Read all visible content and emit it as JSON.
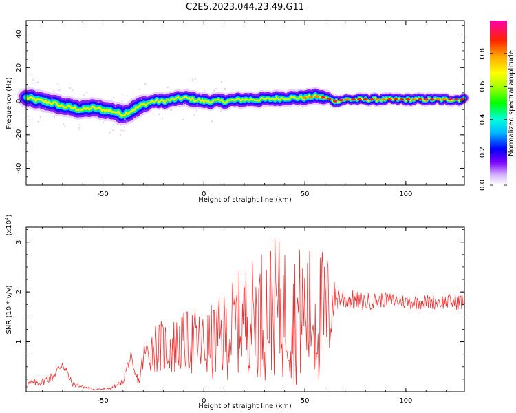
{
  "title": "C2E5.2023.044.23.49.G11",
  "chart_data": [
    {
      "type": "heatmap",
      "xlabel": "Height of straight line (km)",
      "ylabel": "Frequency (Hz)",
      "xlim": [
        -88,
        129
      ],
      "ylim": [
        -50,
        48
      ],
      "x_ticks": [
        -50,
        0,
        50,
        100
      ],
      "y_ticks": [
        -40,
        -20,
        0,
        20,
        40
      ],
      "grid": false,
      "ridge": {
        "x": [
          -88,
          -80,
          -75,
          -70,
          -65,
          -60,
          -55,
          -50,
          -45,
          -40,
          -35,
          -30,
          -25,
          -20,
          -15,
          -10,
          -5,
          0,
          5,
          10,
          20,
          30,
          40,
          50,
          55,
          60,
          65,
          70,
          80,
          90,
          100,
          110,
          120,
          129
        ],
        "frequency": [
          2,
          0,
          -1,
          -3,
          -4,
          -5,
          -4,
          -5,
          -6,
          -8,
          -5,
          -2,
          0,
          0,
          1,
          2,
          1,
          0,
          0,
          0,
          1,
          1,
          2,
          2,
          3,
          2,
          0,
          1,
          1,
          1,
          1,
          1,
          1,
          1
        ]
      },
      "colorbar": {
        "label": "Normalized spectral amplitude",
        "range": [
          0,
          1
        ],
        "ticks": [
          "0.0",
          "0.2",
          "0.4",
          "0.6",
          "0.8"
        ]
      }
    },
    {
      "type": "line",
      "xlabel": "Height of straight line (km)",
      "ylabel": "SNR (10 * v/v)",
      "y_multiplier": "(x10",
      "y_multiplier_exp": "4",
      "y_multiplier_close": ")",
      "xlim": [
        -88,
        129
      ],
      "ylim": [
        0,
        3.3
      ],
      "x_ticks": [
        -50,
        0,
        50,
        100
      ],
      "y_ticks": [
        1,
        2,
        3
      ],
      "grid": false,
      "color": "#ee3333",
      "envelope": {
        "x": [
          -88,
          -80,
          -75,
          -72,
          -70,
          -67,
          -65,
          -60,
          -55,
          -50,
          -45,
          -40,
          -38,
          -36,
          -35,
          -32,
          -30,
          -25,
          -20,
          -15,
          -10,
          -5,
          0,
          5,
          10,
          15,
          20,
          25,
          30,
          35,
          40,
          45,
          50,
          55,
          60,
          62,
          64,
          65,
          70,
          80,
          90,
          100,
          110,
          120,
          129
        ],
        "mean": [
          0.15,
          0.2,
          0.3,
          0.45,
          0.6,
          0.3,
          0.15,
          0.1,
          0.05,
          0.05,
          0.08,
          0.2,
          0.5,
          0.7,
          0.4,
          0.2,
          0.7,
          0.9,
          0.9,
          0.9,
          1.0,
          1.0,
          0.9,
          1.0,
          1.1,
          1.3,
          1.5,
          1.5,
          1.6,
          1.7,
          1.6,
          1.5,
          1.6,
          1.5,
          1.5,
          1.6,
          1.8,
          1.9,
          1.85,
          1.8,
          1.85,
          1.8,
          1.8,
          1.8,
          1.8
        ],
        "amplitude": [
          0.08,
          0.08,
          0.1,
          0.12,
          0.15,
          0.1,
          0.05,
          0.03,
          0.02,
          0.02,
          0.03,
          0.06,
          0.1,
          0.1,
          0.12,
          0.1,
          0.3,
          0.5,
          0.55,
          0.6,
          0.6,
          0.7,
          0.7,
          0.8,
          0.9,
          1.0,
          1.1,
          1.2,
          1.4,
          1.4,
          1.4,
          1.4,
          1.4,
          1.4,
          1.4,
          1.2,
          0.5,
          0.3,
          0.22,
          0.18,
          0.15,
          0.15,
          0.15,
          0.15,
          0.18
        ]
      }
    }
  ]
}
